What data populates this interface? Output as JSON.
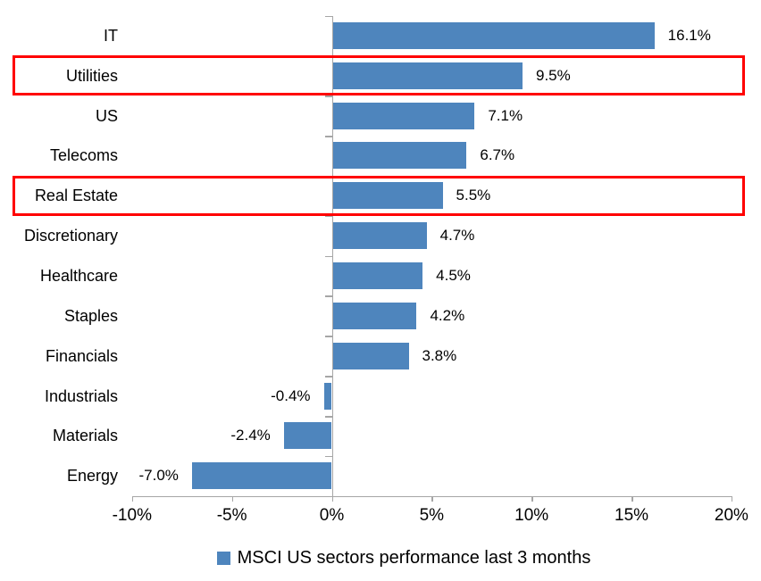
{
  "chart_data": {
    "type": "bar",
    "orientation": "horizontal",
    "title": "",
    "xlabel": "",
    "ylabel": "",
    "categories": [
      "IT",
      "Utilities",
      "US",
      "Telecoms",
      "Real Estate",
      "Discretionary",
      "Healthcare",
      "Staples",
      "Financials",
      "Industrials",
      "Materials",
      "Energy"
    ],
    "values": [
      16.1,
      9.5,
      7.1,
      6.7,
      5.5,
      4.7,
      4.5,
      4.2,
      3.8,
      -0.4,
      -2.4,
      -7.0
    ],
    "value_labels": [
      "16.1%",
      "9.5%",
      "7.1%",
      "6.7%",
      "5.5%",
      "4.7%",
      "4.5%",
      "4.2%",
      "3.8%",
      "-0.4%",
      "-2.4%",
      "-7.0%"
    ],
    "highlighted_categories": [
      "Utilities",
      "Real Estate"
    ],
    "x_axis": {
      "min": -10,
      "max": 20,
      "tick_values": [
        -10,
        -5,
        0,
        5,
        10,
        15,
        20
      ],
      "tick_labels": [
        "-10%",
        "-5%",
        "0%",
        "5%",
        "10%",
        "15%",
        "20%"
      ]
    },
    "grid": "off",
    "legend": {
      "position": "bottom",
      "label": "MSCI US sectors performance last 3 months"
    },
    "colors": {
      "bar": "#4e85bd",
      "highlight_box": "#ff0000",
      "axis": "#a6a6a6",
      "text": "#000000",
      "background": "#ffffff"
    }
  }
}
